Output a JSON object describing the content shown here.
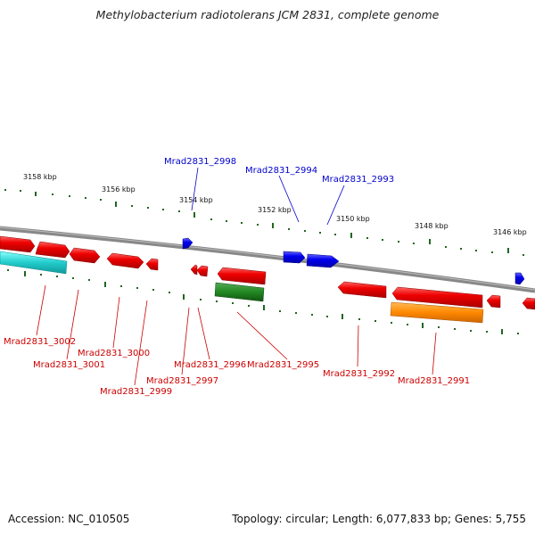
{
  "title": "Methylobacterium radiotolerans JCM 2831, complete genome",
  "ticks": [
    "3158 kbp",
    "3156 kbp",
    "3154 kbp",
    "3152 kbp",
    "3150 kbp",
    "3148 kbp",
    "3146 kbp"
  ],
  "top_genes": [
    "Mrad2831_2998",
    "Mrad2831_2994",
    "Mrad2831_2993"
  ],
  "bottom_genes": [
    "Mrad2831_3002",
    "Mrad2831_3001",
    "Mrad2831_3000",
    "Mrad2831_2999",
    "Mrad2831_2997",
    "Mrad2831_2996",
    "Mrad2831_2995",
    "Mrad2831_2992",
    "Mrad2831_2991"
  ],
  "colors": {
    "forward": "#0000cc",
    "reverse": "#cc0000",
    "cyan": "#22cccc",
    "green": "#228822",
    "orange": "#ff8800",
    "backbone": "#888888"
  },
  "footer": {
    "accession": "Accession: NC_010505",
    "summary": "Topology: circular; Length: 6,077,833 bp; Genes: 5,755"
  }
}
